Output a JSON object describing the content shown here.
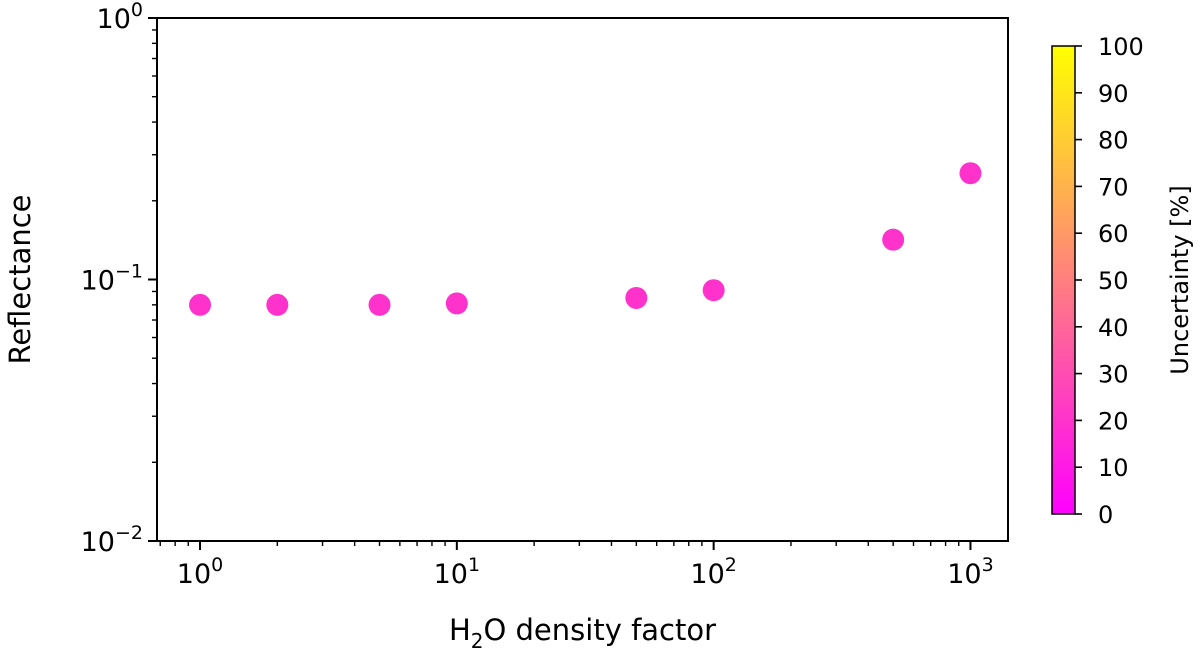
{
  "chart_data": {
    "type": "scatter",
    "xlabel": {
      "prefix": "H",
      "sub": "2",
      "suffix": "O density factor"
    },
    "ylabel": "Reflectance",
    "xscale": "log",
    "yscale": "log",
    "xlim": [
      0.68,
      1400
    ],
    "ylim": [
      0.01,
      1
    ],
    "x_ticks": [
      {
        "base": "10",
        "exp": "0",
        "value": 1
      },
      {
        "base": "10",
        "exp": "1",
        "value": 10
      },
      {
        "base": "10",
        "exp": "2",
        "value": 100
      },
      {
        "base": "10",
        "exp": "3",
        "value": 1000
      }
    ],
    "y_ticks": [
      {
        "base": "10",
        "exp": "−2",
        "value": 0.01
      },
      {
        "base": "10",
        "exp": "−1",
        "value": 0.1
      },
      {
        "base": "10",
        "exp": "0",
        "value": 1
      }
    ],
    "points": [
      {
        "x": 1,
        "y": 0.08,
        "uncertainty": 20
      },
      {
        "x": 2,
        "y": 0.08,
        "uncertainty": 20
      },
      {
        "x": 5,
        "y": 0.08,
        "uncertainty": 20
      },
      {
        "x": 10,
        "y": 0.081,
        "uncertainty": 20
      },
      {
        "x": 50,
        "y": 0.085,
        "uncertainty": 20
      },
      {
        "x": 100,
        "y": 0.091,
        "uncertainty": 20
      },
      {
        "x": 500,
        "y": 0.142,
        "uncertainty": 20
      },
      {
        "x": 1000,
        "y": 0.255,
        "uncertainty": 20
      }
    ],
    "colorbar": {
      "label": "Uncertainty [%]",
      "range": [
        0,
        100
      ],
      "ticks": [
        "0",
        "10",
        "20",
        "30",
        "40",
        "50",
        "60",
        "70",
        "80",
        "90",
        "100"
      ],
      "colormap": "spring",
      "color_low": "#ff00ff",
      "color_high": "#ffff00"
    },
    "grid": false
  }
}
